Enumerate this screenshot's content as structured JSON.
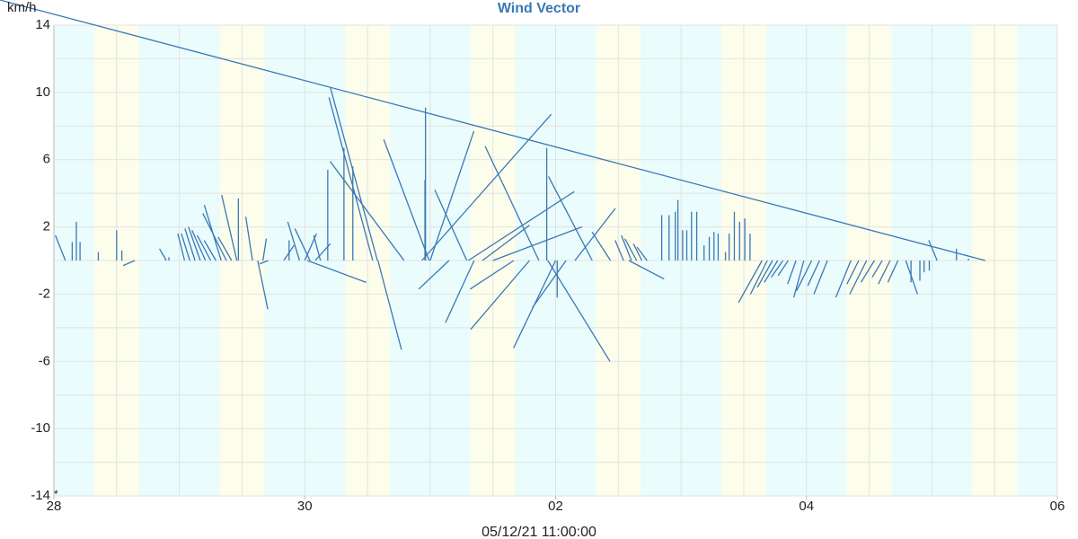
{
  "chart_data": {
    "type": "vector",
    "title": "Wind Vector",
    "y_unit": "km/h",
    "footer": "05/12/21 11:00:00",
    "corner_mark": "*",
    "color": "#3a78b5",
    "night_color": "#eafcfc",
    "day_color": "#fdfdec",
    "day_bands": [
      [
        7.7,
        16.3
      ],
      [
        31.7,
        40.3
      ],
      [
        55.7,
        64.3
      ],
      [
        79.7,
        88.3
      ],
      [
        103.7,
        112.3
      ],
      [
        127.7,
        136.3
      ],
      [
        151.7,
        160.3
      ],
      [
        175.7,
        184.3
      ]
    ],
    "xlim": [
      0,
      192
    ],
    "xticks": [
      {
        "value": 0,
        "label": "28"
      },
      {
        "value": 48,
        "label": "30"
      },
      {
        "value": 96,
        "label": "02"
      },
      {
        "value": 144,
        "label": "04"
      },
      {
        "value": 192,
        "label": "06"
      }
    ],
    "x_gridlines": [
      0,
      12,
      24,
      36,
      48,
      60,
      72,
      84,
      96,
      108,
      120,
      132,
      144,
      156,
      168,
      180,
      192
    ],
    "ylim": [
      -14,
      14
    ],
    "yticks": [
      14,
      10,
      6,
      2,
      -2,
      -6,
      -10,
      -14
    ],
    "y_gridlines": [
      14,
      12,
      10,
      8,
      6,
      4,
      2,
      0,
      -2,
      -4,
      -6,
      -8,
      -10,
      -12,
      -14
    ],
    "x": [
      2.2,
      3.5,
      4.3,
      5,
      8.5,
      12,
      13,
      15.5,
      21.5,
      22,
      25,
      26,
      27,
      28,
      29,
      30,
      31,
      32,
      33,
      34,
      35,
      35.3,
      38,
      39,
      40,
      41,
      44,
      45,
      47,
      48,
      48.5,
      49,
      50,
      51,
      52.4,
      55.5,
      57.2,
      61,
      61.9,
      62,
      67,
      70.4,
      71,
      71.1,
      71.8,
      72,
      75.6,
      79,
      79.3,
      80.4,
      82,
      84,
      88,
      91,
      92.8,
      94.3,
      94.5,
      96,
      96.3,
      98,
      99.7,
      103,
      106.5,
      110,
      109,
      110.5,
      111.5,
      112.5,
      113.5,
      116.3,
      117.7,
      118.9,
      119.4,
      120.3,
      121.1,
      122,
      123,
      124.4,
      125.4,
      126.3,
      127.1,
      128.5,
      129.2,
      130.2,
      131.2,
      132.2,
      133.2,
      135.5,
      136.5,
      137.5,
      138.5,
      139.5,
      140.5,
      142,
      143.5,
      145,
      146.5,
      148,
      152.5,
      154,
      155.5,
      157,
      158.5,
      160,
      161.5,
      163,
      164,
      165.7,
      166.5,
      167.5,
      169,
      172.7,
      175,
      178.2
    ],
    "u": [
      -0.6,
      0,
      0,
      0,
      0,
      0,
      0,
      -0.7,
      -0.4,
      0,
      -0.4,
      -0.5,
      -0.6,
      -0.7,
      -0.8,
      -0.8,
      -0.7,
      -1.0,
      -1.4,
      -0.8,
      -0.9,
      0,
      -0.4,
      0.6,
      0.2,
      -0.5,
      0.6,
      0,
      -0.7,
      0.7,
      3.5,
      -0.9,
      0.9,
      -0.4,
      0,
      0,
      0,
      -2.6,
      -2.8,
      1.4,
      -4.4,
      7.7,
      0,
      0,
      -2.7,
      2.6,
      -1.8,
      -1.9,
      6.3,
      -1.7,
      2.8,
      5.3,
      -2.6,
      -3.5,
      -3.2,
      0,
      3.7,
      -2.5,
      0,
      -2.0,
      2.4,
      -2.6,
      -1.1,
      2.1,
      -0.5,
      -0.6,
      -0.7,
      -0.5,
      -0.6,
      0,
      0,
      0,
      0,
      0,
      0,
      0,
      0,
      0,
      0,
      0,
      0,
      0,
      0,
      0,
      0,
      0,
      0,
      -1.4,
      -1.0,
      -0.9,
      -0.8,
      -0.7,
      -0.6,
      -0.5,
      -0.6,
      -0.9,
      -0.7,
      -0.8,
      -0.9,
      -0.7,
      -1.0,
      -0.8,
      -0.6,
      -0.7,
      -0.6,
      0.7,
      0,
      0,
      0,
      0,
      -0.5,
      0,
      0
    ],
    "v": [
      1.5,
      1.1,
      2.3,
      1.1,
      0.5,
      1.8,
      0.6,
      -0.3,
      0.7,
      0.2,
      1.6,
      1.6,
      1.9,
      2.0,
      1.8,
      1.5,
      1.2,
      3.3,
      2.8,
      1.4,
      3.9,
      3.7,
      2.6,
      -2.9,
      1.3,
      -0.2,
      0.9,
      1.2,
      2.3,
      1.6,
      -1.3,
      1.9,
      1.0,
      1.5,
      5.4,
      6.7,
      5.6,
      9.7,
      10.3,
      -5.3,
      5.9,
      8.7,
      4.8,
      9.1,
      7.2,
      7.7,
      -1.7,
      4.2,
      4.1,
      -3.7,
      2.1,
      2.0,
      -1.7,
      -4.1,
      6.8,
      6.7,
      -6.0,
      -5.2,
      -2.2,
      -2.8,
      3.1,
      5.0,
      1.7,
      -1.1,
      1.2,
      1.5,
      1.3,
      1.0,
      0.8,
      2.7,
      2.7,
      2.9,
      3.6,
      1.8,
      1.8,
      2.9,
      2.9,
      0.9,
      1.4,
      1.7,
      1.6,
      0.5,
      1.6,
      2.9,
      2.3,
      2.5,
      1.6,
      -2.5,
      -2.0,
      -1.6,
      -1.3,
      -1.0,
      -0.9,
      -1.4,
      -2.2,
      -1.8,
      -1.5,
      -2.0,
      -2.2,
      -1.4,
      -2.0,
      -1.3,
      -1.0,
      -1.4,
      -1.3,
      -2.0,
      -1.3,
      -1.2,
      -0.7,
      -0.6,
      1.2,
      0.7,
      0.1
    ]
  }
}
